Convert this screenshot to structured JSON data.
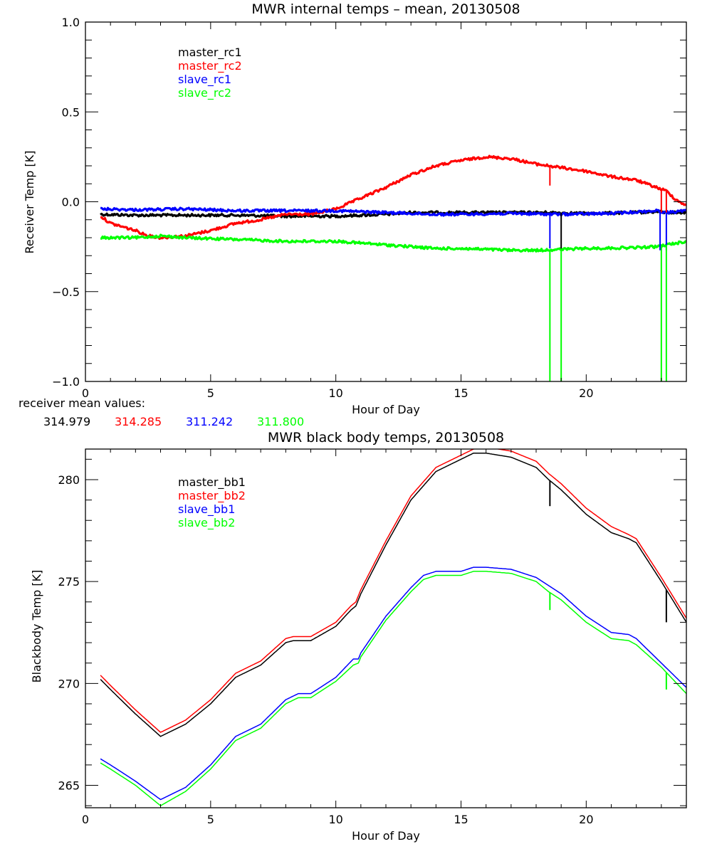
{
  "chart_data": [
    {
      "type": "line",
      "title": "MWR internal temps – mean, 20130508",
      "xlabel": "Hour of Day",
      "ylabel": "Receiver Temp [K]",
      "xlim": [
        0,
        24
      ],
      "ylim": [
        -1.0,
        1.0
      ],
      "xticks": [
        "0",
        "5",
        "10",
        "15",
        "20"
      ],
      "yticks": [
        "-1.0",
        "-0.5",
        "0.0",
        "0.5",
        "1.0"
      ],
      "grid": false,
      "legend_position": "top-left",
      "series": [
        {
          "name": "master_rc1",
          "color": "#000000",
          "x": [
            0.6,
            2,
            4,
            6,
            8,
            10,
            12,
            13,
            15,
            17,
            18.5,
            20,
            22,
            22.8,
            23.2,
            24
          ],
          "y": [
            -0.07,
            -0.075,
            -0.075,
            -0.075,
            -0.08,
            -0.08,
            -0.07,
            -0.06,
            -0.06,
            -0.06,
            -0.06,
            -0.065,
            -0.06,
            -0.055,
            -0.06,
            -0.06
          ]
        },
        {
          "name": "master_rc2",
          "color": "#ff0000",
          "x": [
            0.6,
            1,
            2,
            2.5,
            3,
            4,
            5,
            6,
            7,
            8,
            9,
            10,
            11,
            12,
            13,
            14,
            15,
            16,
            17,
            18,
            19,
            20,
            21,
            22,
            22.8,
            23.2,
            23.6,
            24
          ],
          "y": [
            -0.08,
            -0.12,
            -0.16,
            -0.19,
            -0.2,
            -0.19,
            -0.16,
            -0.12,
            -0.1,
            -0.07,
            -0.07,
            -0.04,
            0.02,
            0.08,
            0.15,
            0.2,
            0.23,
            0.25,
            0.24,
            0.21,
            0.19,
            0.17,
            0.14,
            0.12,
            0.08,
            0.06,
            0.01,
            -0.02
          ]
        },
        {
          "name": "slave_rc1",
          "color": "#0000ff",
          "x": [
            0.6,
            2,
            4,
            6,
            8,
            10,
            12,
            14,
            15,
            17,
            19,
            21,
            22.8,
            23.2,
            24
          ],
          "y": [
            -0.04,
            -0.045,
            -0.04,
            -0.05,
            -0.05,
            -0.05,
            -0.06,
            -0.07,
            -0.07,
            -0.065,
            -0.07,
            -0.065,
            -0.05,
            -0.06,
            -0.05
          ]
        },
        {
          "name": "slave_rc2",
          "color": "#00ff00",
          "x": [
            0.6,
            2,
            3,
            4,
            6,
            8,
            10,
            12,
            14,
            15,
            17,
            18,
            20,
            22,
            22.8,
            23.2,
            24
          ],
          "y": [
            -0.2,
            -0.2,
            -0.19,
            -0.2,
            -0.21,
            -0.22,
            -0.22,
            -0.24,
            -0.26,
            -0.26,
            -0.27,
            -0.27,
            -0.26,
            -0.255,
            -0.25,
            -0.24,
            -0.22
          ]
        }
      ],
      "spikes": [
        {
          "series": "master_rc2",
          "x": 18.55,
          "y_to": 0.09
        },
        {
          "series": "slave_rc1",
          "x": 18.55,
          "y_to": -0.26
        },
        {
          "series": "master_rc1",
          "x": 19.0,
          "y_to": -0.26
        },
        {
          "series": "slave_rc2",
          "x": 18.55,
          "y_to": -1.0
        },
        {
          "series": "slave_rc2",
          "x": 19.0,
          "y_to": -1.0
        },
        {
          "series": "master_rc2",
          "x": 23.0,
          "y_to": -0.06
        },
        {
          "series": "master_rc2",
          "x": 23.2,
          "y_to": -0.06
        },
        {
          "series": "slave_rc1",
          "x": 22.95,
          "y_to": -0.27
        },
        {
          "series": "slave_rc1",
          "x": 23.2,
          "y_to": -0.27
        },
        {
          "series": "slave_rc2",
          "x": 23.0,
          "y_to": -1.0
        },
        {
          "series": "slave_rc2",
          "x": 23.2,
          "y_to": -1.0
        }
      ]
    },
    {
      "type": "line",
      "title": "MWR black body temps, 20130508",
      "xlabel": "Hour of Day",
      "ylabel": "Blackbody Temp [K]",
      "xlim": [
        0,
        24
      ],
      "ylim": [
        263.9,
        281.5
      ],
      "xticks": [
        "0",
        "5",
        "10",
        "15",
        "20"
      ],
      "yticks": [
        "265",
        "270",
        "275",
        "280"
      ],
      "grid": false,
      "legend_position": "top-left",
      "series": [
        {
          "name": "master_bb1",
          "color": "#000000",
          "x": [
            0.6,
            1,
            2,
            3,
            4,
            5,
            6,
            7,
            8,
            8.3,
            9,
            10,
            10.6,
            10.8,
            11,
            12,
            13,
            14,
            15,
            15.5,
            16,
            16.5,
            17,
            18,
            18.5,
            19,
            20,
            21,
            21.7,
            22,
            23,
            24
          ],
          "y": [
            270.2,
            269.7,
            268.5,
            267.4,
            268.0,
            269.0,
            270.3,
            270.9,
            272.0,
            272.1,
            272.1,
            272.8,
            273.6,
            273.8,
            274.4,
            276.8,
            279.0,
            280.4,
            281.0,
            281.3,
            281.3,
            281.2,
            281.1,
            280.6,
            280.0,
            279.5,
            278.3,
            277.4,
            277.1,
            276.9,
            275.0,
            273.0
          ]
        },
        {
          "name": "master_bb2",
          "color": "#ff0000",
          "x": [
            0.6,
            1,
            2,
            3,
            4,
            5,
            6,
            7,
            8,
            8.3,
            9,
            10,
            10.6,
            10.8,
            11,
            12,
            13,
            14,
            15,
            15.5,
            16,
            16.5,
            17,
            18,
            18.5,
            19,
            20,
            21,
            21.7,
            22,
            23,
            24
          ],
          "y": [
            270.4,
            269.9,
            268.7,
            267.6,
            268.2,
            269.2,
            270.5,
            271.1,
            272.2,
            272.3,
            272.3,
            273.0,
            273.8,
            274.0,
            274.6,
            277.0,
            279.2,
            280.6,
            281.2,
            281.5,
            281.6,
            281.5,
            281.4,
            280.9,
            280.3,
            279.8,
            278.6,
            277.7,
            277.3,
            277.1,
            275.2,
            273.2
          ]
        },
        {
          "name": "slave_bb1",
          "color": "#0000ff",
          "x": [
            0.6,
            1,
            2,
            3,
            4,
            5,
            6,
            7,
            8,
            8.5,
            9,
            10,
            10.7,
            10.9,
            11,
            12,
            13,
            13.5,
            14,
            15,
            15.5,
            16,
            17,
            18,
            18.5,
            19,
            20,
            21,
            21.7,
            22,
            23,
            24
          ],
          "y": [
            266.3,
            266.0,
            265.2,
            264.3,
            264.9,
            266.0,
            267.4,
            268.0,
            269.2,
            269.5,
            269.5,
            270.3,
            271.2,
            271.2,
            271.5,
            273.3,
            274.7,
            275.3,
            275.5,
            275.5,
            275.7,
            275.7,
            275.6,
            275.2,
            274.8,
            274.4,
            273.3,
            272.5,
            272.4,
            272.2,
            271.0,
            269.8
          ]
        },
        {
          "name": "slave_bb2",
          "color": "#00ff00",
          "x": [
            0.6,
            1,
            2,
            3,
            4,
            5,
            6,
            7,
            8,
            8.5,
            9,
            10,
            10.7,
            10.9,
            11,
            12,
            13,
            13.5,
            14,
            15,
            15.5,
            16,
            17,
            18,
            18.5,
            19,
            20,
            21,
            21.7,
            22,
            23,
            24
          ],
          "y": [
            266.1,
            265.8,
            265.0,
            264.0,
            264.7,
            265.8,
            267.2,
            267.8,
            269.0,
            269.3,
            269.3,
            270.1,
            270.9,
            271.0,
            271.3,
            273.1,
            274.5,
            275.1,
            275.3,
            275.3,
            275.5,
            275.5,
            275.4,
            275.0,
            274.5,
            274.1,
            273.0,
            272.2,
            272.1,
            271.9,
            270.8,
            269.5
          ]
        }
      ],
      "spikes": [
        {
          "series": "master_bb1",
          "x": 18.55,
          "y_to": 278.7
        },
        {
          "series": "slave_bb2",
          "x": 18.55,
          "y_to": 273.6
        },
        {
          "series": "master_bb1",
          "x": 23.2,
          "y_to": 273.0
        },
        {
          "series": "slave_bb2",
          "x": 23.2,
          "y_to": 269.7
        }
      ]
    }
  ],
  "annotations": {
    "mean_label": "receiver mean values:",
    "mean_values": [
      {
        "value": "314.979",
        "color": "#000000"
      },
      {
        "value": "314.285",
        "color": "#ff0000"
      },
      {
        "value": "311.242",
        "color": "#0000ff"
      },
      {
        "value": "311.800",
        "color": "#00ff00"
      }
    ]
  }
}
